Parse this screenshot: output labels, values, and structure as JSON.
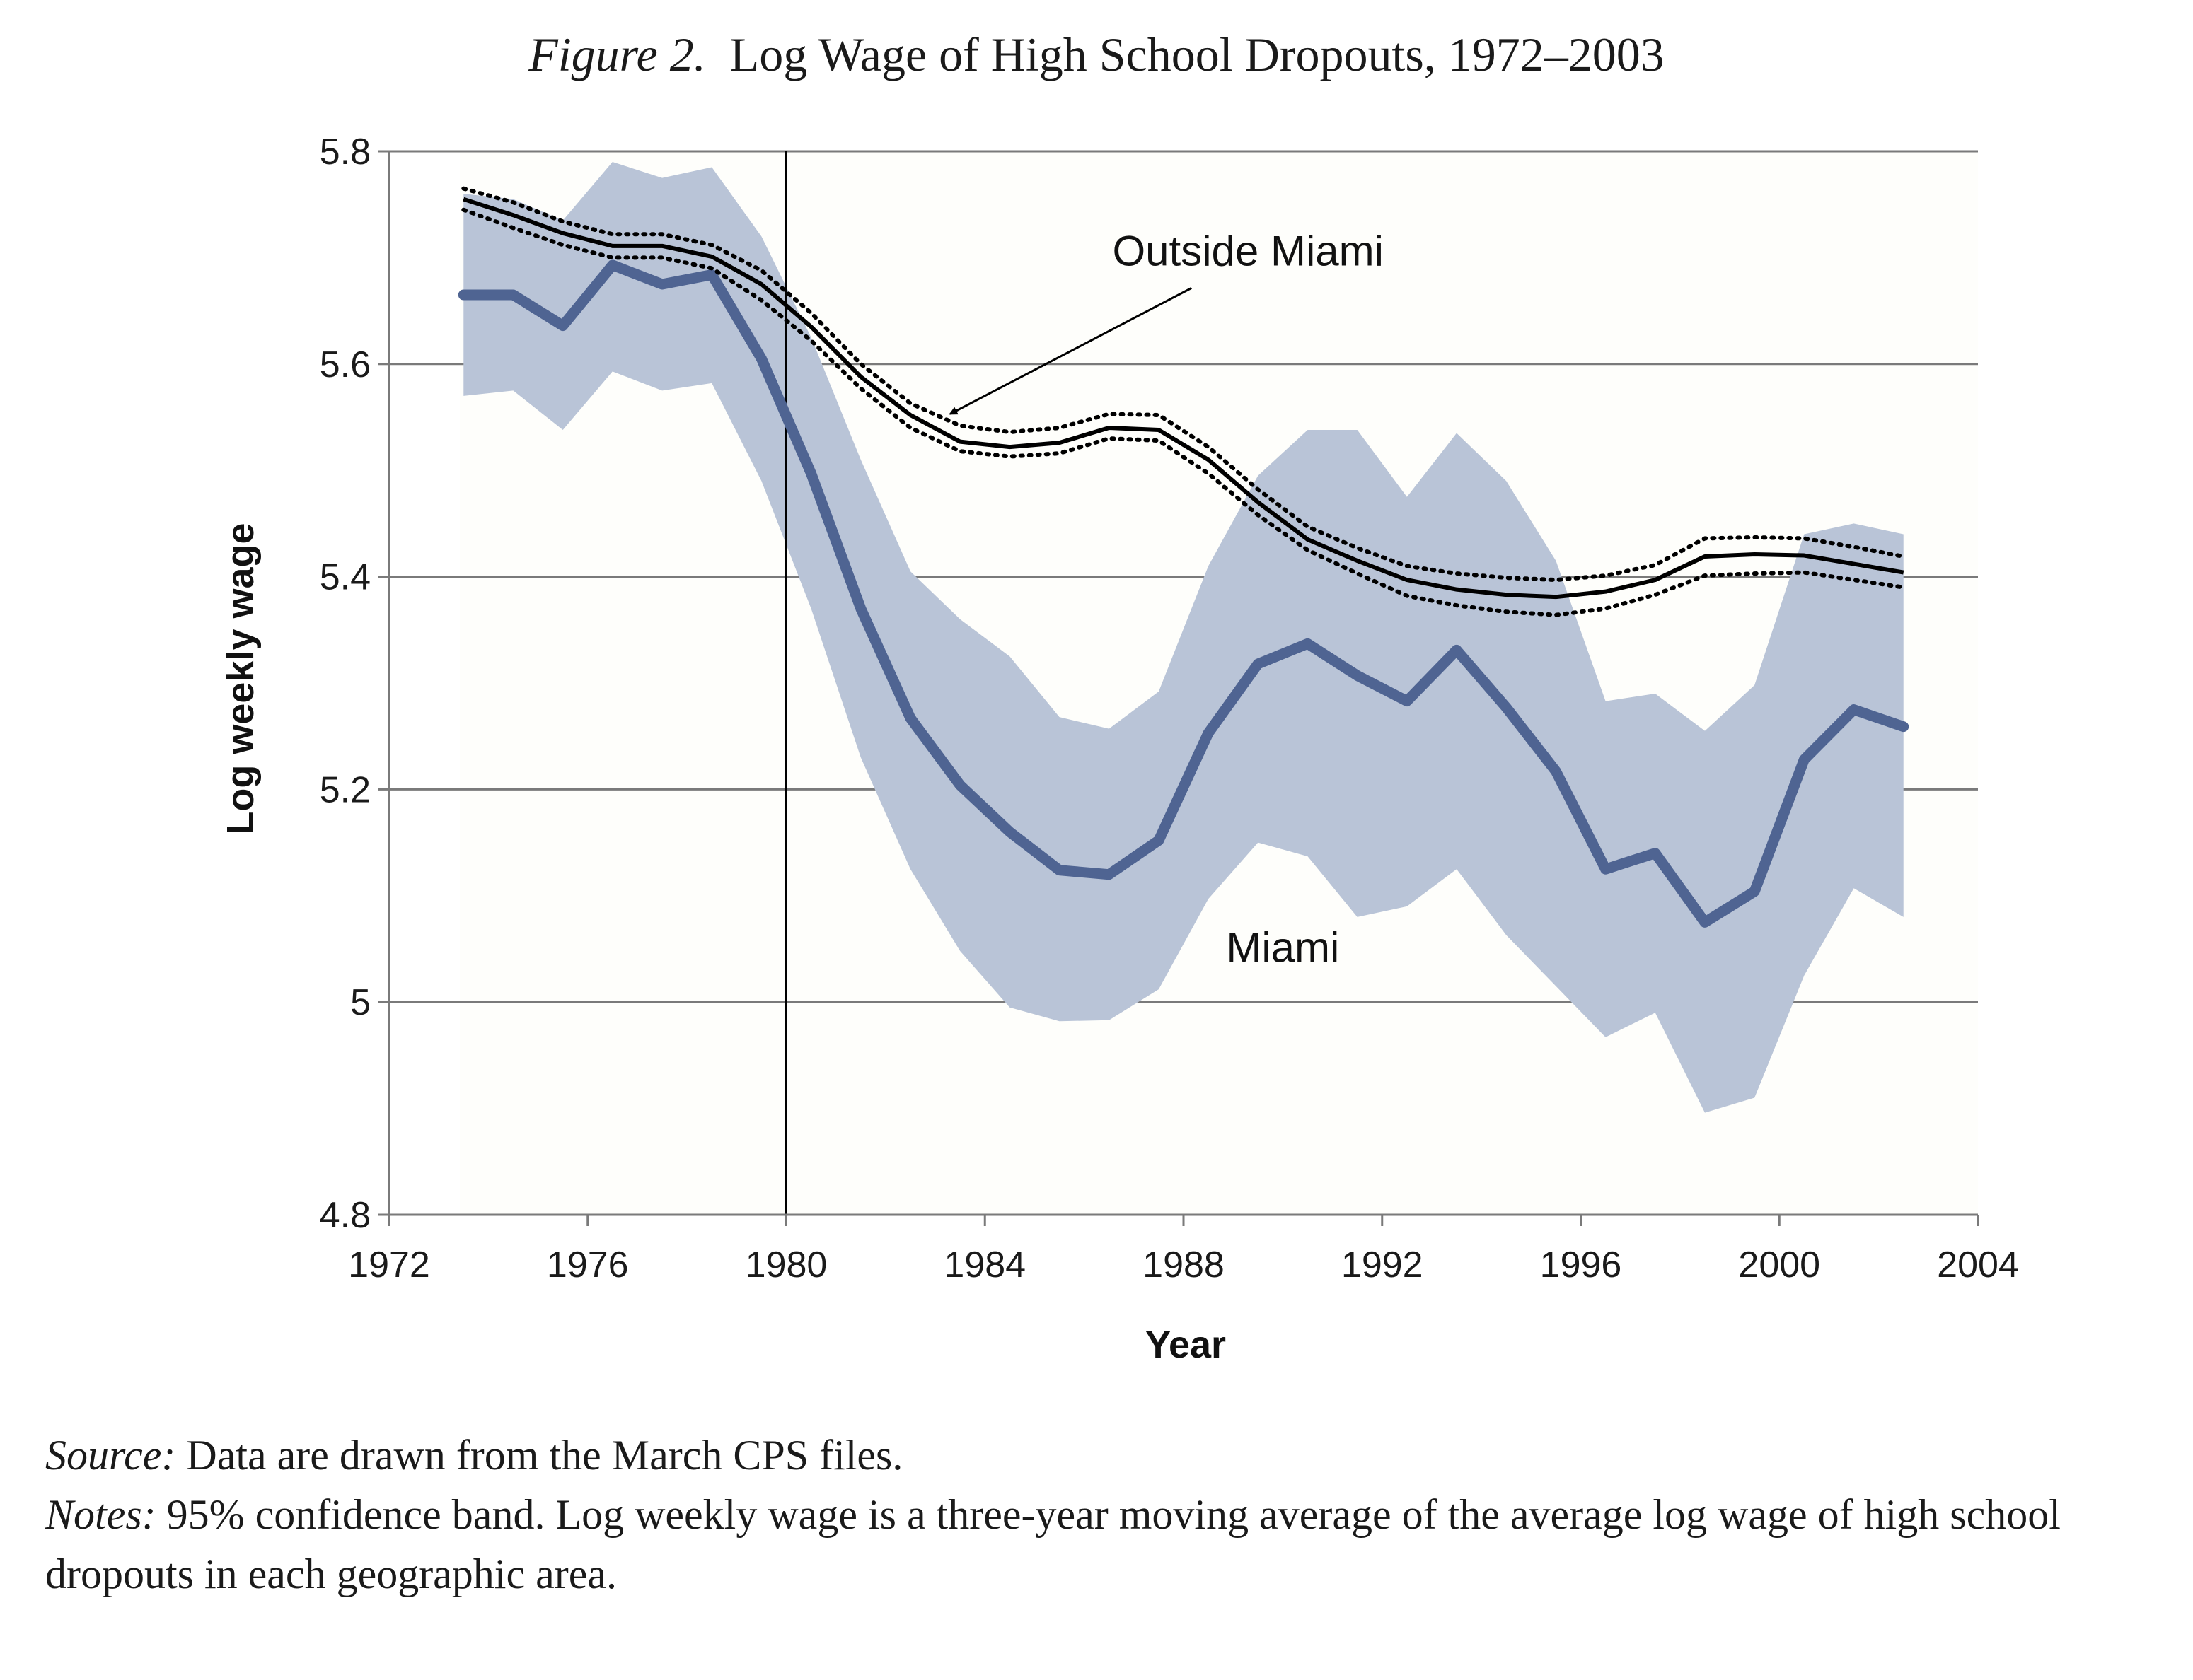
{
  "figure": {
    "title_lead": "Figure 2.",
    "title_main": "Log Wage of High School Dropouts, 1972–2003"
  },
  "notes": {
    "source_lead": "Source:",
    "source_text": "Data are drawn from the March CPS files.",
    "notes_lead": "Notes:",
    "notes_text": "95% confidence band. Log weekly wage is a three-year moving average of the average log wage of high school dropouts in each geographic area."
  },
  "chart_data": {
    "type": "line",
    "title": "Log Wage of High School Dropouts, 1972–2003",
    "xlabel": "Year",
    "ylabel": "Log weekly wage",
    "xlim": [
      1972,
      2004
    ],
    "ylim": [
      4.8,
      5.8
    ],
    "x_ticks": [
      1972,
      1976,
      1980,
      1984,
      1988,
      1992,
      1996,
      2000,
      2004
    ],
    "y_ticks": [
      4.8,
      5,
      5.2,
      5.4,
      5.6,
      5.8
    ],
    "y_tick_labels": [
      "4.8",
      "5",
      "5.2",
      "5.4",
      "5.6",
      "5.8"
    ],
    "grid": "horizontal",
    "vertical_marker": 1980,
    "x": [
      1973.5,
      1974.5,
      1975.5,
      1976.5,
      1977.5,
      1978.5,
      1979.5,
      1980.5,
      1981.5,
      1982.5,
      1983.5,
      1984.5,
      1985.5,
      1986.5,
      1987.5,
      1988.5,
      1989.5,
      1990.5,
      1991.5,
      1992.5,
      1993.5,
      1994.5,
      1995.5,
      1996.5,
      1997.5,
      1998.5,
      1999.5,
      2000.5,
      2001.5,
      2002.5
    ],
    "series": [
      {
        "name": "Miami",
        "color": "#4f6492",
        "values": [
          5.665,
          5.665,
          5.636,
          5.693,
          5.675,
          5.684,
          5.605,
          5.497,
          5.37,
          5.267,
          5.204,
          5.16,
          5.124,
          5.12,
          5.152,
          5.253,
          5.318,
          5.337,
          5.307,
          5.283,
          5.331,
          5.277,
          5.217,
          5.125,
          5.14,
          5.075,
          5.104,
          5.228,
          5.275,
          5.259
        ],
        "ci_lower": [
          5.57,
          5.575,
          5.538,
          5.593,
          5.575,
          5.582,
          5.49,
          5.37,
          5.23,
          5.125,
          5.048,
          4.995,
          4.982,
          4.983,
          5.012,
          5.097,
          5.15,
          5.137,
          5.08,
          5.09,
          5.125,
          5.063,
          5.015,
          4.967,
          4.99,
          4.896,
          4.91,
          5.025,
          5.107,
          5.08
        ],
        "ci_upper": [
          5.76,
          5.755,
          5.735,
          5.79,
          5.775,
          5.785,
          5.72,
          5.625,
          5.51,
          5.405,
          5.36,
          5.325,
          5.268,
          5.257,
          5.292,
          5.41,
          5.495,
          5.538,
          5.538,
          5.475,
          5.535,
          5.49,
          5.415,
          5.283,
          5.29,
          5.255,
          5.298,
          5.44,
          5.45,
          5.44
        ],
        "band_color": "#b9c4d7"
      },
      {
        "name": "Outside Miami",
        "color": "#000000",
        "values": [
          5.755,
          5.74,
          5.723,
          5.711,
          5.711,
          5.701,
          5.675,
          5.635,
          5.588,
          5.552,
          5.527,
          5.522,
          5.526,
          5.54,
          5.538,
          5.51,
          5.47,
          5.435,
          5.415,
          5.397,
          5.388,
          5.383,
          5.381,
          5.386,
          5.397,
          5.419,
          5.421,
          5.42,
          5.412,
          5.404
        ],
        "ci_lower": [
          5.745,
          5.728,
          5.712,
          5.7,
          5.7,
          5.69,
          5.66,
          5.622,
          5.577,
          5.54,
          5.518,
          5.513,
          5.516,
          5.53,
          5.528,
          5.497,
          5.458,
          5.425,
          5.403,
          5.382,
          5.373,
          5.367,
          5.364,
          5.37,
          5.383,
          5.401,
          5.403,
          5.404,
          5.397,
          5.39
        ],
        "ci_upper": [
          5.765,
          5.752,
          5.734,
          5.722,
          5.722,
          5.712,
          5.688,
          5.648,
          5.6,
          5.563,
          5.542,
          5.536,
          5.54,
          5.553,
          5.552,
          5.522,
          5.482,
          5.447,
          5.427,
          5.41,
          5.403,
          5.399,
          5.397,
          5.401,
          5.411,
          5.436,
          5.437,
          5.436,
          5.428,
          5.419
        ]
      }
    ],
    "annotations": [
      {
        "text": "Outside Miami",
        "x": 1989.3,
        "y": 5.706
      },
      {
        "text": "Miami",
        "x": 1990.0,
        "y": 5.051
      }
    ]
  }
}
